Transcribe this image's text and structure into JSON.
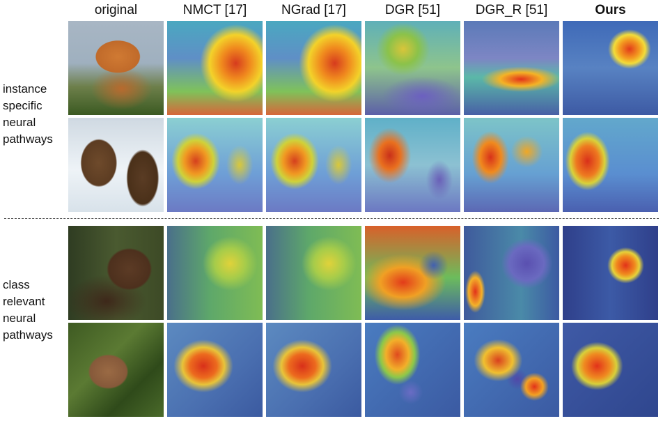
{
  "columns": [
    "original",
    "NMCT [17]",
    "NGrad [17]",
    "DGR [51]",
    "DGR_R [51]",
    "Ours"
  ],
  "row_groups": [
    {
      "label_lines": [
        "instance",
        "specific",
        "neural",
        "pathways"
      ]
    },
    {
      "label_lines": [
        "class",
        "relevant",
        "neural",
        "pathways"
      ]
    }
  ]
}
